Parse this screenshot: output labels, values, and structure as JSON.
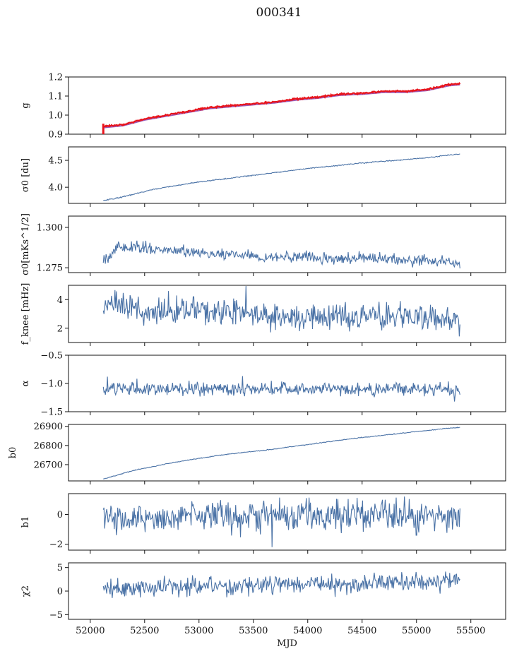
{
  "figure_title": "000341",
  "colors": {
    "series": "#4a72a6",
    "fit": "#e8141c",
    "fit_lower": "#9b59b6",
    "axis": "#111111"
  },
  "chart_data": [
    {
      "type": "line",
      "ylabel": "g",
      "ylim": [
        0.9,
        1.2
      ],
      "yticks": [
        0.9,
        1.0,
        1.1,
        1.2
      ],
      "ytick_labels": [
        "0.9",
        "1.0",
        "1.1",
        "1.2"
      ],
      "x": [
        52120,
        52300,
        52500,
        52700,
        52900,
        53100,
        53300,
        53500,
        53700,
        53900,
        54100,
        54300,
        54500,
        54700,
        54900,
        55100,
        55300,
        55400
      ],
      "y": [
        0.94,
        0.95,
        0.98,
        1.0,
        1.02,
        1.04,
        1.05,
        1.06,
        1.07,
        1.085,
        1.095,
        1.11,
        1.115,
        1.125,
        1.125,
        1.135,
        1.16,
        1.165
      ],
      "overlay": "red fit with spike near 52120 down to 0.9"
    },
    {
      "type": "line",
      "ylabel": "σ0 [du]",
      "ylim": [
        3.7,
        4.75
      ],
      "yticks": [
        4.0,
        4.5
      ],
      "ytick_labels": [
        "4.0",
        "4.5"
      ],
      "x": [
        52120,
        52300,
        52600,
        53000,
        53500,
        54000,
        54500,
        55000,
        55400
      ],
      "y": [
        3.75,
        3.82,
        3.97,
        4.1,
        4.22,
        4.35,
        4.45,
        4.53,
        4.62
      ]
    },
    {
      "type": "line",
      "ylabel": "σ0[mKs^1/2]",
      "ylim": [
        1.272,
        1.307
      ],
      "yticks": [
        1.275,
        1.3
      ],
      "ytick_labels": [
        "1.275",
        "1.300"
      ],
      "x": [
        52120,
        52250,
        52400,
        52700,
        53000,
        53300,
        53600,
        53900,
        54200,
        54500,
        54800,
        55100,
        55300,
        55400
      ],
      "y": [
        1.279,
        1.287,
        1.287,
        1.286,
        1.284,
        1.284,
        1.281,
        1.282,
        1.28,
        1.281,
        1.28,
        1.28,
        1.279,
        1.276
      ]
    },
    {
      "type": "line",
      "ylabel": "f_knee [mHz]",
      "ylim": [
        1,
        5
      ],
      "yticks": [
        2,
        4
      ],
      "ytick_labels": [
        "2",
        "4"
      ],
      "x": [
        52120,
        52500,
        53000,
        53500,
        54000,
        54500,
        55000,
        55400
      ],
      "y": [
        3.6,
        3.3,
        3.1,
        2.9,
        2.8,
        2.8,
        2.7,
        2.6
      ]
    },
    {
      "type": "line",
      "ylabel": "α",
      "ylim": [
        -1.5,
        -0.5
      ],
      "yticks": [
        -1.5,
        -1.0,
        -0.5
      ],
      "ytick_labels": [
        "−1.5",
        "−1.0",
        "−0.5"
      ],
      "x": [
        52120,
        55400
      ],
      "y": [
        -1.1,
        -1.1
      ]
    },
    {
      "type": "line",
      "ylabel": "b0",
      "ylim": [
        26615,
        26910
      ],
      "yticks": [
        26700,
        26800,
        26900
      ],
      "ytick_labels": [
        "26700",
        "26800",
        "26900"
      ],
      "x": [
        52120,
        52400,
        52800,
        53200,
        53600,
        54000,
        54400,
        54800,
        55200,
        55400
      ],
      "y": [
        26625,
        26670,
        26715,
        26750,
        26775,
        26805,
        26835,
        26860,
        26885,
        26895
      ]
    },
    {
      "type": "line",
      "ylabel": "b1",
      "ylim": [
        -2.4,
        1.4
      ],
      "yticks": [
        -2,
        0
      ],
      "ytick_labels": [
        "−2",
        "0"
      ],
      "x": [
        52120,
        55400
      ],
      "y": [
        -0.2,
        -0.1
      ]
    },
    {
      "type": "line",
      "ylabel": "χ2",
      "ylim": [
        -6,
        6
      ],
      "yticks": [
        -5,
        0,
        5
      ],
      "ytick_labels": [
        "−5",
        "0",
        "5"
      ],
      "x": [
        52120,
        53000,
        54000,
        55000,
        55400
      ],
      "y": [
        0.5,
        1.0,
        1.5,
        2.0,
        2.0
      ]
    }
  ],
  "x_axis": {
    "label": "MJD",
    "xlim": [
      51800,
      55820
    ],
    "ticks": [
      52000,
      52500,
      53000,
      53500,
      54000,
      54500,
      55000,
      55500
    ],
    "tick_labels": [
      "52000",
      "52500",
      "53000",
      "53500",
      "54000",
      "54500",
      "55000",
      "55500"
    ]
  }
}
